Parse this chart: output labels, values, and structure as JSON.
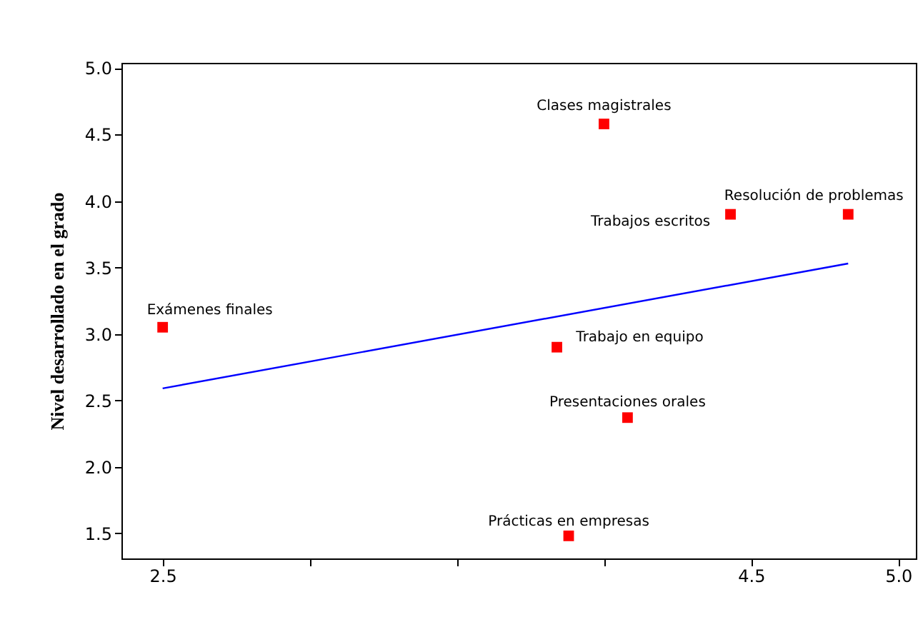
{
  "chart_data": {
    "type": "scatter",
    "ylabel": "Nivel desarrollado en el grado",
    "xlim": [
      2.36,
      5.06
    ],
    "ylim": [
      1.31,
      5.04
    ],
    "xticks": [
      2.5,
      {
        "value": 3.0,
        "label": null
      },
      {
        "value": 3.5,
        "label": null
      },
      {
        "value": 4.0,
        "label": null
      },
      4.5,
      {
        "value": 5,
        "label": "5.0"
      }
    ],
    "yticks": [
      1.5,
      {
        "value": 2,
        "label": "2.0"
      },
      2.5,
      {
        "value": 3,
        "label": "3.0"
      },
      3.5,
      {
        "value": 4,
        "label": "4.0"
      },
      4.5,
      {
        "value": 5,
        "label": "5.0"
      }
    ],
    "grid": false,
    "series": [
      {
        "color": "#ff0000",
        "marker": "square",
        "x": [
          4.0,
          4.83,
          4.43,
          2.5,
          3.84,
          4.08,
          3.88
        ],
        "values": [
          4.58,
          3.9,
          3.9,
          3.05,
          2.9,
          2.37,
          1.48
        ]
      },
      {
        "type": "line",
        "color": "#0000ff",
        "marker": "none",
        "x": [
          2.5,
          4.83
        ],
        "values": [
          2.59,
          3.53
        ]
      }
    ],
    "annotations": [
      {
        "text": "Clases magistrales",
        "x": 4.0,
        "y": 4.58
      },
      {
        "text": "Resolución de problemas",
        "x": 4.83,
        "y": 3.9
      },
      {
        "text": "Trabajos escritos",
        "x": 4.43,
        "y": 3.9
      },
      {
        "text": "Exámenes finales",
        "x": 2.5,
        "y": 3.05
      },
      {
        "text": "Trabajo en equipo",
        "x": 3.84,
        "y": 2.9
      },
      {
        "text": "Presentaciones orales",
        "x": 4.08,
        "y": 2.37
      },
      {
        "text": "Prácticas en empresas",
        "x": 3.88,
        "y": 1.48
      }
    ]
  }
}
